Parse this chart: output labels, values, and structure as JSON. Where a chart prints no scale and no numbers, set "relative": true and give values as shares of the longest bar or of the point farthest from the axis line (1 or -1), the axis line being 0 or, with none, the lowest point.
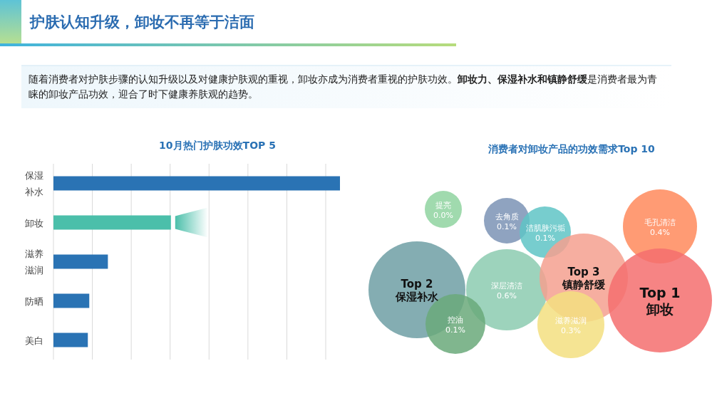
{
  "chart_data": [
    {
      "type": "bar",
      "orientation": "horizontal",
      "relative": true,
      "title": "10月热门护肤功效TOP 5",
      "annotations": [
        "护肤认知升级，卸妆不再等于洁面",
        "随着消费者对护肤步骤的认知升级以及对健康护肤观的重视，卸妆亦成为消费者重视的护肤功效。",
        "卸妆力、保湿补水和镇静舒缓",
        "是消费者最为青睐的卸妆产品功效，迎合了时下健康养肤观的趋势。"
      ],
      "categories": [
        "保湿补水",
        "卸妆",
        "滋养滋润",
        "防晒",
        "美白"
      ],
      "values": [
        1,
        0.41,
        0.19,
        0.125,
        0.12
      ],
      "colors": [
        "#2a73b4",
        "#4bbfaa",
        "#2a73b4",
        "#2a73b4",
        "#2a73b4"
      ],
      "grid": "x"
    },
    {
      "type": "other",
      "title": "消费者对卸妆产品的功效需求Top 10",
      "categories": [
        "提亮",
        "去角质",
        "洁肌肤污垢",
        "毛孔清洁",
        "Top 2\n保湿补水",
        "深层清洁",
        "Top 3\n镇静舒缓",
        "Top 1\n卸妆",
        "控油",
        "滋养滋润"
      ],
      "values": [
        0.0,
        0.1,
        0.1,
        0.4,
        null,
        0.6,
        null,
        null,
        0.1,
        0.3
      ],
      "value_labels": [
        "0.0%",
        "0.1%",
        "0.1%",
        "0.4%",
        null,
        "0.6%",
        null,
        null,
        "0.1%",
        "0.3%"
      ],
      "colors": [
        "#8fd3a0",
        "#7b93b5",
        "#5fc4c6",
        "#ff8a5c",
        "#6f9fa5",
        "#8ccbb0",
        "#f5a08f",
        "#f46e6e",
        "#6aa97a",
        "#f3df80"
      ]
    }
  ]
}
